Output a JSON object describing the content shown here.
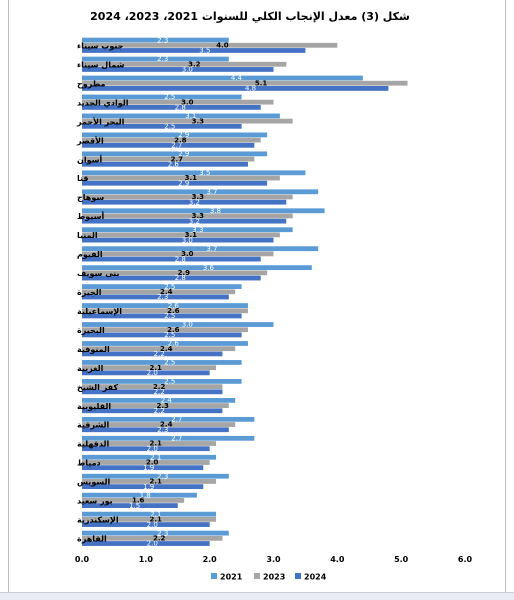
{
  "chart_data": {
    "type": "bar",
    "orientation": "horizontal",
    "title": "شكل (3) معدل الإنجاب الكلي للسنوات 2021، 2023، 2024",
    "categories": [
      "جنوب سيناء",
      "شمال سيناء",
      "مطروح",
      "الوادي الجديد",
      "البحر الأحمر",
      "الأقصر",
      "أسوان",
      "قنا",
      "سوهاج",
      "أسيوط",
      "المنيا",
      "الفيوم",
      "بنى سويف",
      "الجيزة",
      "الإسماعيلية",
      "البحيرة",
      "المنوفية",
      "الغربية",
      "كفر الشيخ",
      "القليوبية",
      "الشرقية",
      "الدقهلية",
      "دمياط",
      "السويس",
      "بور سعيد",
      "الإسكندرية",
      "القاهرة"
    ],
    "series": [
      {
        "name": "2021",
        "color": "#5b9bd5",
        "values": [
          2.3,
          2.3,
          4.4,
          2.5,
          3.1,
          2.9,
          2.9,
          3.5,
          3.7,
          3.8,
          3.3,
          3.7,
          3.6,
          2.5,
          2.6,
          3.0,
          2.6,
          2.5,
          2.5,
          2.4,
          2.7,
          2.7,
          2.1,
          2.3,
          1.8,
          2.1,
          2.3
        ]
      },
      {
        "name": "2023",
        "color": "#a5a5a5",
        "values": [
          4.0,
          3.2,
          5.1,
          3.0,
          3.3,
          2.8,
          2.7,
          3.1,
          3.3,
          3.3,
          3.1,
          3.0,
          2.9,
          2.4,
          2.6,
          2.6,
          2.4,
          2.1,
          2.2,
          2.3,
          2.4,
          2.1,
          2.0,
          2.1,
          1.6,
          2.1,
          2.2
        ]
      },
      {
        "name": "2024",
        "color": "#4472c4",
        "values": [
          3.5,
          3.0,
          4.8,
          2.8,
          2.5,
          2.7,
          2.6,
          2.9,
          3.2,
          3.2,
          3.0,
          2.8,
          2.8,
          2.3,
          2.5,
          2.5,
          2.2,
          2.0,
          2.2,
          2.2,
          2.3,
          2.0,
          1.9,
          1.9,
          1.5,
          2.0,
          2.0
        ]
      }
    ],
    "data_labels": {
      "2021": [
        "2.3",
        "2.3",
        "4.4",
        "2.5",
        "3.1",
        "2.9",
        "2.9",
        "3.5",
        "3.7",
        "3.8",
        "3.3",
        "3.7",
        "3.6",
        "2.5",
        "2.6",
        "3.0",
        "2.6",
        "2.5",
        "2.5",
        "2.4",
        "2.7",
        "2.7",
        "2.1",
        "2.3",
        "1.8",
        "2.1",
        "2.3"
      ],
      "2023": [
        "4.0",
        "3.2",
        "5.1",
        "3.0",
        "3.3",
        "2.8",
        "2.7",
        "3.1",
        "3.3",
        "3.3",
        "3.1",
        "3.0",
        "2.9",
        "2.4",
        "2.6",
        "2.6",
        "2.4",
        "2.1",
        "2.2",
        "2.3",
        "2.4",
        "2.1",
        "2.0",
        "2.1",
        "1.6",
        "2.1",
        "2.2"
      ],
      "2024": [
        "3.5",
        "3.0",
        "4.8",
        "2.8",
        "2.5",
        "2.7",
        "2.6",
        "2.9",
        "3.2",
        "3.2",
        "3.0",
        "2.8",
        "2.8",
        "2.3",
        "2.5",
        "2.5",
        "2.2",
        "2.0",
        "2.2",
        "2.2",
        "2.3",
        "2.0",
        "1.9",
        "1.9",
        "1.5",
        "2.0",
        "2.0"
      ]
    },
    "xlim": [
      0,
      6
    ],
    "xticks": [
      "0.0",
      "1.0",
      "2.0",
      "3.0",
      "4.0",
      "5.0",
      "6.0"
    ],
    "xlabel": "",
    "ylabel": "",
    "grid": false,
    "legend_position": "bottom"
  }
}
